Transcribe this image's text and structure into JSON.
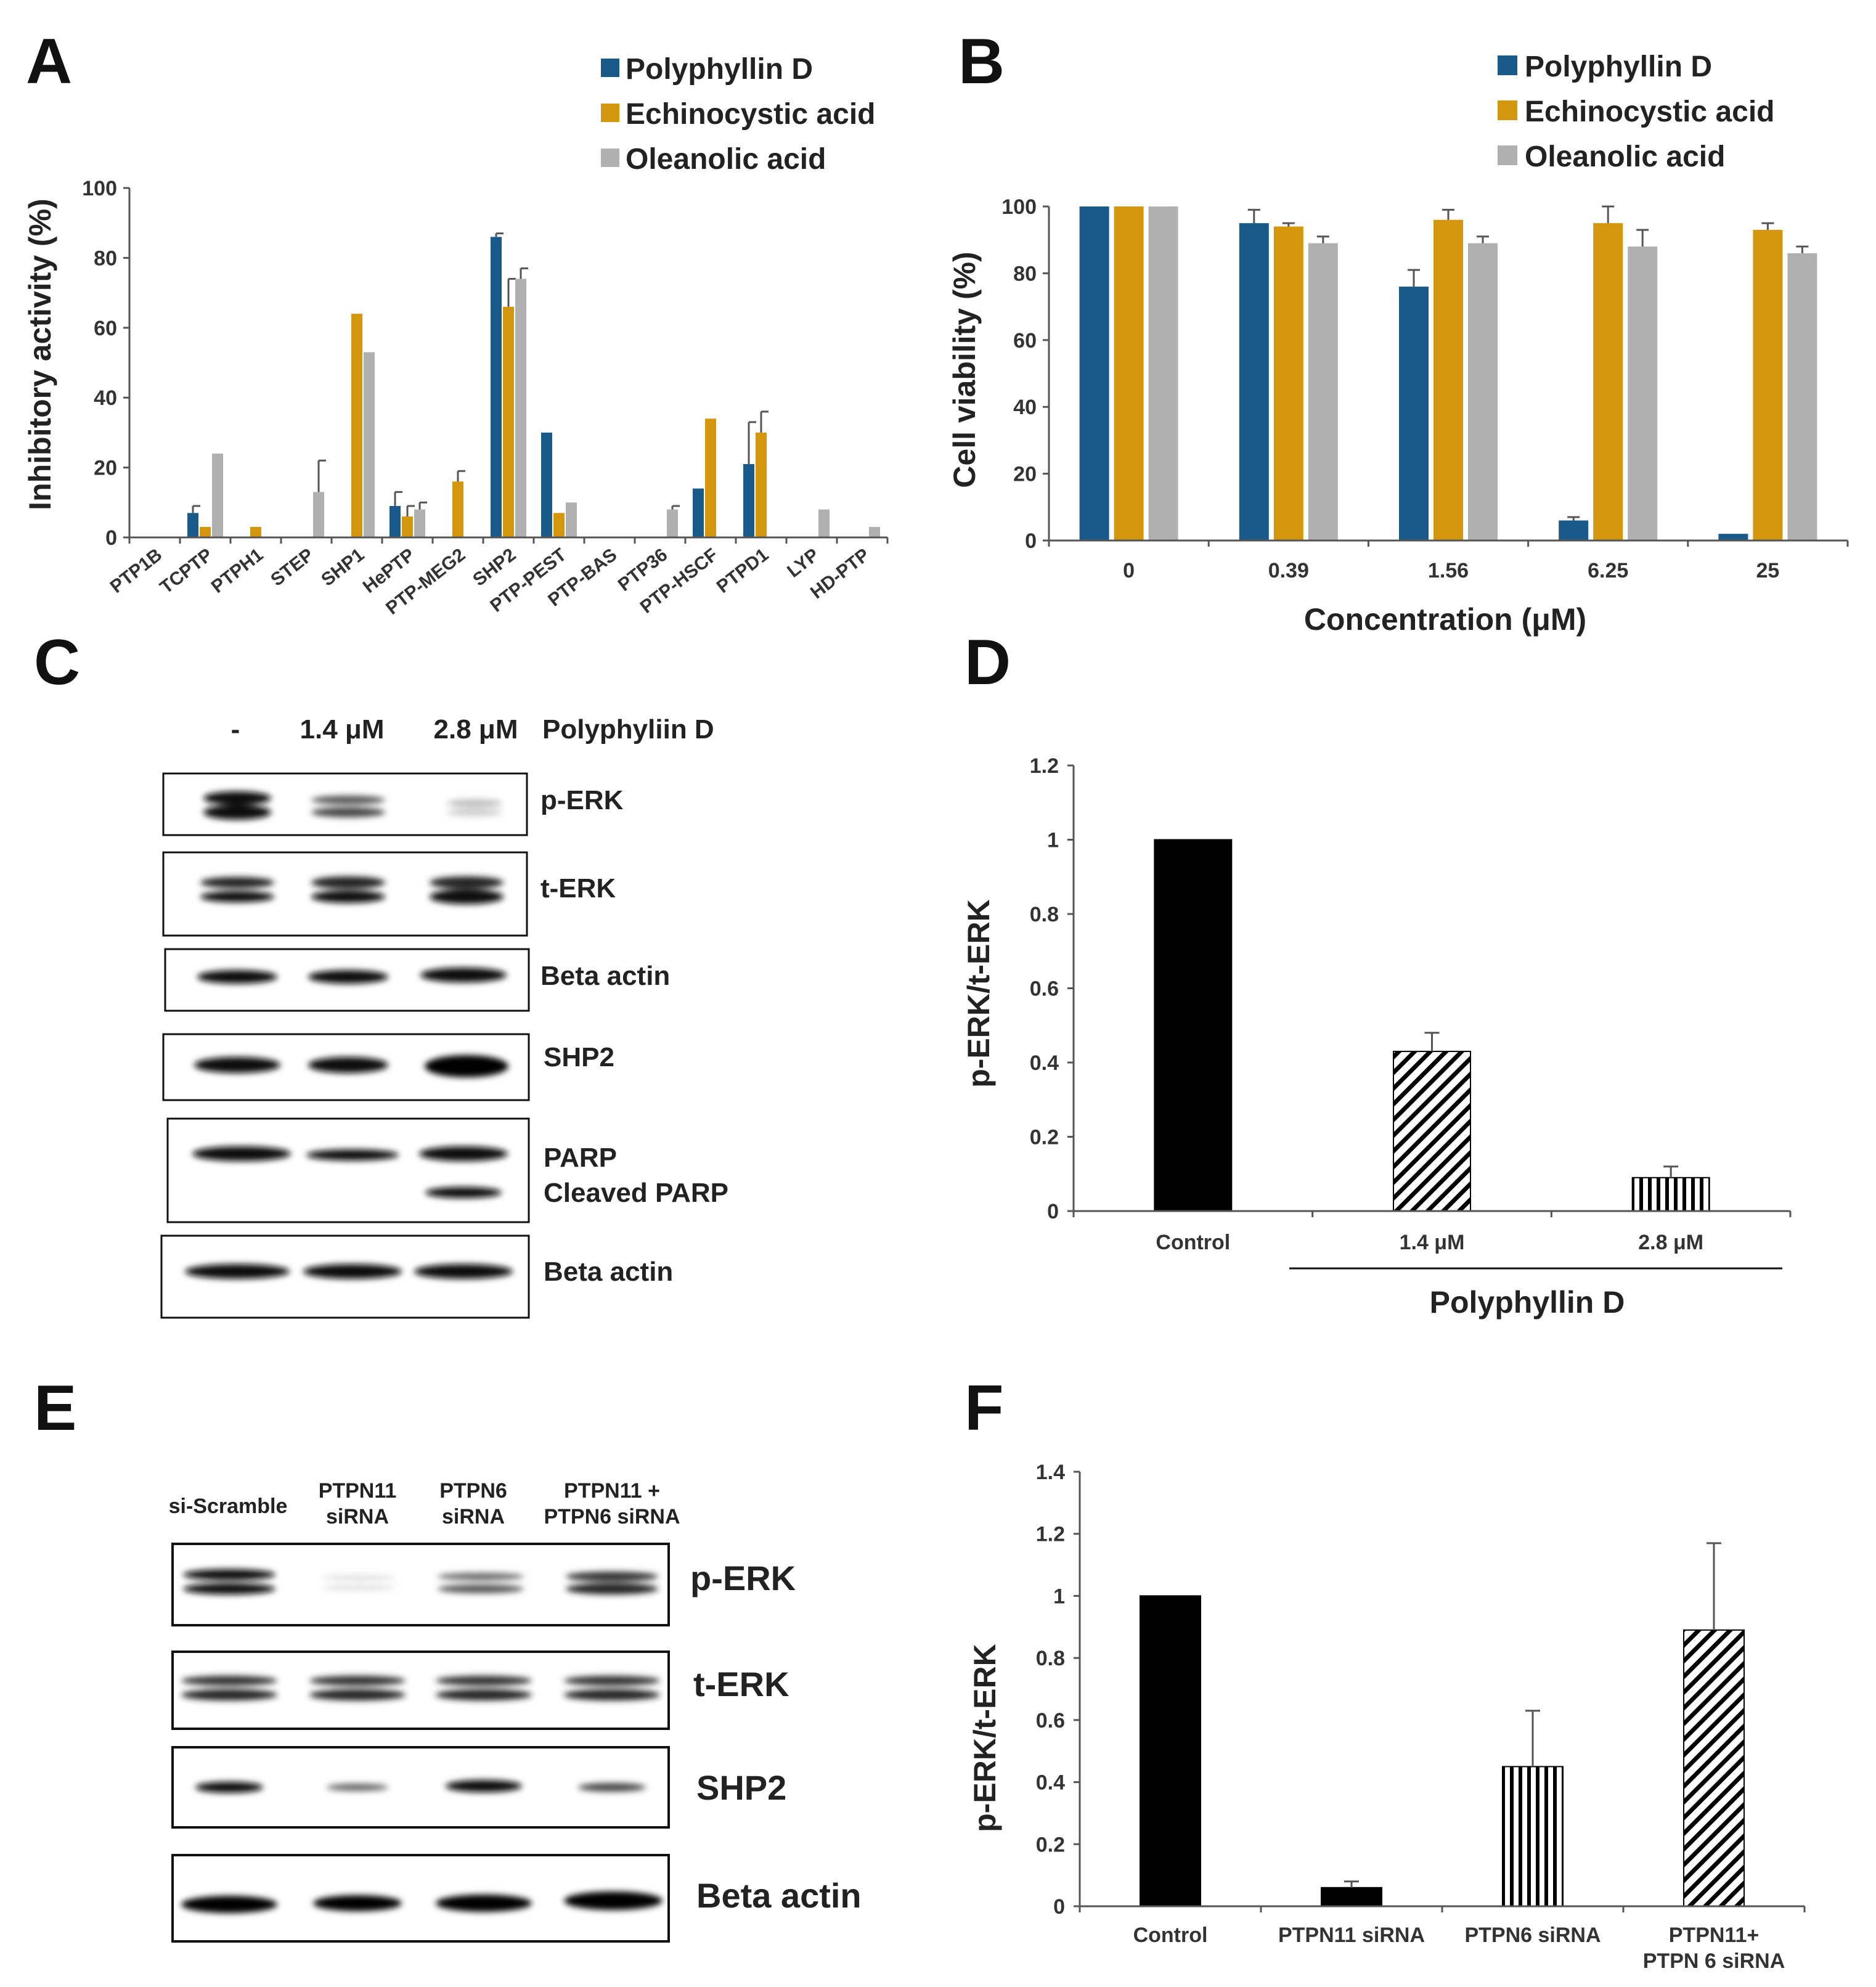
{
  "panels": {
    "A": "A",
    "B": "B",
    "C": "C",
    "D": "D",
    "E": "E",
    "F": "F"
  },
  "colors": {
    "polyphyllin": "#1a5a8a",
    "echinocystic": "#d4960c",
    "oleanolic": "#b0b0b0",
    "black": "#000000"
  },
  "chart_data": [
    {
      "panel": "A",
      "type": "bar",
      "ylabel": "Inhibitory activity (%)",
      "ylim": [
        0,
        100
      ],
      "yticks": [
        0,
        20,
        40,
        60,
        80,
        100
      ],
      "legend_position": "top-right",
      "categories": [
        "PTP1B",
        "TCPTP",
        "PTPH1",
        "STEP",
        "SHP1",
        "HePTP",
        "PTP-MEG2",
        "SHP2",
        "PTP-PEST",
        "PTP-BAS",
        "PTP36",
        "PTP-HSCF",
        "PTPD1",
        "LYP",
        "HD-PTP"
      ],
      "series": [
        {
          "name": "Polyphyllin D",
          "color": "#1a5a8a",
          "values": [
            0,
            7,
            0,
            0,
            0,
            9,
            0,
            86,
            30,
            0,
            0,
            14,
            21,
            0,
            0
          ],
          "errors": [
            0,
            2,
            0,
            0,
            0,
            4,
            0,
            1,
            0,
            0,
            0,
            0,
            12,
            0,
            0
          ]
        },
        {
          "name": "Echinocystic acid",
          "color": "#d4960c",
          "values": [
            0,
            3,
            3,
            0,
            64,
            6,
            16,
            66,
            7,
            0,
            0,
            34,
            30,
            0,
            0
          ],
          "errors": [
            0,
            0,
            0,
            0,
            0,
            3,
            3,
            8,
            0,
            0,
            0,
            0,
            6,
            0,
            0
          ]
        },
        {
          "name": "Oleanolic acid",
          "color": "#b0b0b0",
          "values": [
            0,
            24,
            0,
            13,
            53,
            8,
            0,
            74,
            10,
            0,
            8,
            0,
            0,
            8,
            3
          ],
          "errors": [
            0,
            0,
            0,
            9,
            0,
            2,
            0,
            3,
            0,
            0,
            1,
            0,
            0,
            0,
            0
          ]
        }
      ]
    },
    {
      "panel": "B",
      "type": "bar",
      "ylabel": "Cell viability (%)",
      "xlabel": "Concentration (μM)",
      "ylim": [
        0,
        100
      ],
      "yticks": [
        0,
        20,
        40,
        60,
        80,
        100
      ],
      "legend_position": "top-right",
      "categories": [
        "0",
        "0.39",
        "1.56",
        "6.25",
        "25"
      ],
      "series": [
        {
          "name": "Polyphyllin D",
          "color": "#1a5a8a",
          "values": [
            100,
            95,
            76,
            6,
            2
          ],
          "errors": [
            0,
            4,
            5,
            1,
            0
          ]
        },
        {
          "name": "Echinocystic acid",
          "color": "#d4960c",
          "values": [
            100,
            94,
            96,
            95,
            93
          ],
          "errors": [
            0,
            1,
            3,
            5,
            2
          ]
        },
        {
          "name": "Oleanolic acid",
          "color": "#b0b0b0",
          "values": [
            100,
            89,
            89,
            88,
            86
          ],
          "errors": [
            0,
            2,
            2,
            5,
            2
          ]
        }
      ]
    },
    {
      "panel": "D",
      "type": "bar",
      "ylabel": "p-ERK/t-ERK",
      "xlabel": "Polyphyllin D",
      "ylim": [
        0,
        1.2
      ],
      "yticks": [
        "0",
        "0.2",
        "0.4",
        "0.6",
        "0.8",
        "1",
        "1.2"
      ],
      "categories": [
        "Control",
        "1.4 μM",
        "2.8 μM"
      ],
      "patterns": [
        "solid",
        "diagonal",
        "vertical"
      ],
      "values": [
        1.0,
        0.43,
        0.09
      ],
      "errors": [
        0,
        0.05,
        0.03
      ]
    },
    {
      "panel": "F",
      "type": "bar",
      "ylabel": "p-ERK/t-ERK",
      "ylim": [
        0,
        1.4
      ],
      "yticks": [
        "0",
        "0.2",
        "0.4",
        "0.6",
        "0.8",
        "1",
        "1.2",
        "1.4"
      ],
      "categories": [
        "Control",
        "PTPN11 siRNA",
        "PTPN6 siRNA",
        "PTPN11+\nPTPN 6 siRNA"
      ],
      "patterns": [
        "solid",
        "solid",
        "vertical",
        "diagonal"
      ],
      "values": [
        1.0,
        0.06,
        0.45,
        0.89
      ],
      "errors": [
        0,
        0.02,
        0.18,
        0.28
      ]
    }
  ],
  "blot_C": {
    "lane_headers": [
      "-",
      "1.4 μM",
      "2.8 μM",
      "Polyphyliin D"
    ],
    "labels": {
      "perk": "p-ERK",
      "terk": "t-ERK",
      "beta1": "Beta actin",
      "shp2": "SHP2",
      "parp": "PARP",
      "cleaved": "Cleaved PARP",
      "beta2": "Beta actin"
    }
  },
  "blot_E": {
    "lane_headers": {
      "l1": "si-Scramble",
      "l2a": "PTPN11",
      "l2b": "siRNA",
      "l3a": "PTPN6",
      "l3b": "siRNA",
      "l4a": "PTPN11 +",
      "l4b": "PTPN6 siRNA"
    },
    "labels": {
      "perk": "p-ERK",
      "terk": "t-ERK",
      "shp2": "SHP2",
      "beta": "Beta actin"
    }
  }
}
